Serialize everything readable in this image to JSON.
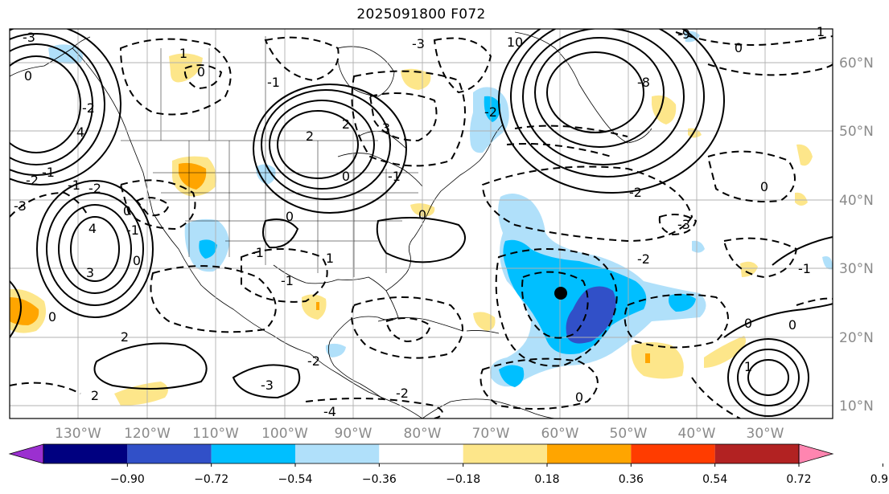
{
  "title": "2025091800 F072",
  "map": {
    "lon_labels": [
      "130°W",
      "120°W",
      "110°W",
      "100°W",
      "90°W",
      "80°W",
      "70°W",
      "60°W",
      "50°W",
      "40°W",
      "30°W"
    ],
    "lat_labels": [
      "60°N",
      "50°N",
      "40°N",
      "30°N",
      "20°N",
      "10°N"
    ],
    "contour_labels": [
      "-3",
      "0",
      "-2",
      "4",
      "-1",
      "-2",
      "-1",
      "-3",
      "4",
      "3",
      "0",
      "-1",
      "-2",
      "0",
      "0",
      "2",
      "2",
      "-3",
      "-2",
      "0",
      "-1",
      "1",
      "-1",
      "2",
      "0",
      "0",
      "1",
      "0",
      "-1",
      "2",
      "3",
      "-1",
      "-2",
      "-4",
      "0",
      "-3",
      "-2",
      "-2",
      "0",
      "0",
      "0",
      "-3",
      "-2",
      "-1",
      "1",
      "1",
      "0",
      "-8",
      "-9",
      "10"
    ],
    "storm_marker": "storm-center"
  },
  "colorbar": {
    "levels": [
      -0.9,
      -0.72,
      -0.54,
      -0.36,
      -0.18,
      0.18,
      0.36,
      0.54,
      0.72,
      0.9
    ],
    "labels": [
      "−0.90",
      "−0.72",
      "−0.54",
      "−0.36",
      "−0.18",
      "0.18",
      "0.36",
      "0.54",
      "0.72",
      "0.90"
    ],
    "colors": [
      "#9b30d0",
      "#000080",
      "#3150c8",
      "#00bfff",
      "#b0e0fa",
      "#ffffff",
      "#fde68a",
      "#ffa500",
      "#ff3c00",
      "#b22222",
      "#ff85b0"
    ]
  }
}
